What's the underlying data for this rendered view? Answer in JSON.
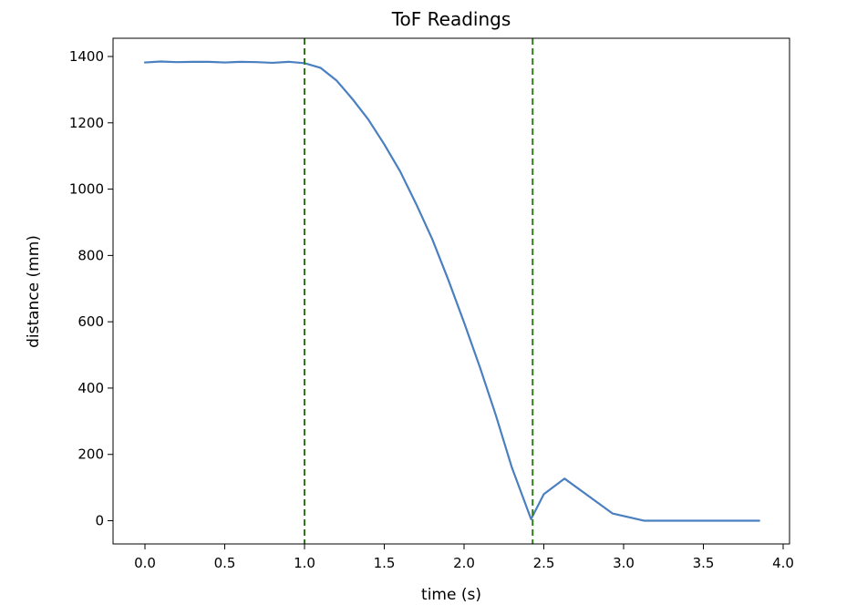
{
  "chart_data": {
    "type": "line",
    "title": "ToF Readings",
    "xlabel": "time (s)",
    "ylabel": "distance (mm)",
    "xlim": [
      -0.2,
      4.04
    ],
    "ylim": [
      -70,
      1455
    ],
    "xticks": [
      0.0,
      0.5,
      1.0,
      1.5,
      2.0,
      2.5,
      3.0,
      3.5,
      4.0
    ],
    "xtick_labels": [
      "0.0",
      "0.5",
      "1.0",
      "1.5",
      "2.0",
      "2.5",
      "3.0",
      "3.5",
      "4.0"
    ],
    "yticks": [
      0,
      200,
      400,
      600,
      800,
      1000,
      1200,
      1400
    ],
    "ytick_labels": [
      "0",
      "200",
      "400",
      "600",
      "800",
      "1000",
      "1200",
      "1400"
    ],
    "grid": false,
    "series": [
      {
        "color": "#4a7fc0",
        "x": [
          0.0,
          0.1,
          0.2,
          0.3,
          0.4,
          0.5,
          0.6,
          0.7,
          0.8,
          0.9,
          1.0,
          1.1,
          1.2,
          1.3,
          1.4,
          1.5,
          1.6,
          1.7,
          1.8,
          1.9,
          2.0,
          2.1,
          2.2,
          2.3,
          2.42,
          2.5,
          2.63,
          2.93,
          3.13,
          3.3,
          3.5,
          3.7,
          3.85
        ],
        "y": [
          1382,
          1385,
          1383,
          1384,
          1384,
          1382,
          1384,
          1383,
          1381,
          1384,
          1380,
          1366,
          1328,
          1272,
          1210,
          1135,
          1053,
          955,
          850,
          728,
          598,
          462,
          317,
          160,
          5,
          80,
          127,
          22,
          0,
          0,
          0,
          0,
          0
        ]
      }
    ],
    "vlines": [
      {
        "x": 1.0,
        "color": "#2f7b1c",
        "style": "dashed"
      },
      {
        "x": 2.43,
        "color": "#2f7b1c",
        "style": "dashed"
      }
    ]
  }
}
